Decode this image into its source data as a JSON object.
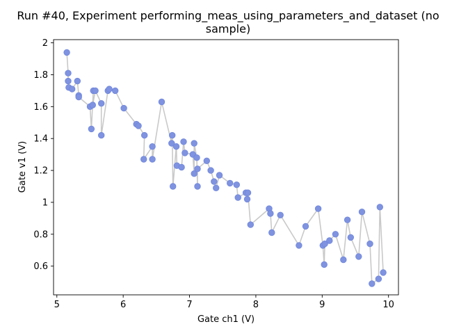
{
  "chart_data": {
    "type": "scatter",
    "title_line1": "Run #40, Experiment performing_meas_using_parameters_and_dataset (no",
    "title_line2": "sample)",
    "xlabel": "Gate ch1 (V)",
    "ylabel": "Gate v1 (V)",
    "xlim": [
      4.95,
      10.15
    ],
    "ylim": [
      0.42,
      2.02
    ],
    "xticks": [
      5,
      6,
      7,
      8,
      9,
      10
    ],
    "xtick_labels": [
      "5",
      "6",
      "7",
      "8",
      "9",
      "10"
    ],
    "yticks": [
      0.6,
      0.8,
      1.0,
      1.2,
      1.4,
      1.6,
      1.8,
      2.0
    ],
    "ytick_labels": [
      "0.6",
      "0.8",
      "1",
      "1.2",
      "1.4",
      "1.6",
      "1.8",
      "2"
    ],
    "grid": false,
    "legend": "none",
    "marker_color": "#7f93e0",
    "marker_edge_color": "#6f86dc",
    "line_color": "#c9c9c9",
    "x": [
      5.15,
      5.17,
      5.17,
      5.18,
      5.23,
      5.31,
      5.33,
      5.33,
      5.5,
      5.52,
      5.55,
      5.54,
      5.58,
      5.67,
      5.67,
      5.77,
      5.79,
      5.88,
      6.01,
      6.2,
      6.23,
      6.32,
      6.31,
      6.44,
      6.44,
      6.58,
      6.73,
      6.74,
      6.75,
      6.8,
      6.81,
      6.88,
      6.91,
      6.93,
      7.05,
      7.07,
      7.07,
      7.11,
      7.12,
      7.12,
      7.26,
      7.32,
      7.37,
      7.4,
      7.45,
      7.61,
      7.71,
      7.73,
      7.85,
      7.87,
      7.88,
      7.92,
      8.2,
      8.22,
      8.24,
      8.37,
      8.65,
      8.75,
      8.94,
      9.01,
      9.03,
      9.04,
      9.11,
      9.2,
      9.32,
      9.38,
      9.43,
      9.55,
      9.6,
      9.72,
      9.75,
      9.85,
      9.87,
      9.92
    ],
    "y": [
      1.94,
      1.81,
      1.76,
      1.72,
      1.71,
      1.76,
      1.67,
      1.66,
      1.6,
      1.46,
      1.7,
      1.61,
      1.7,
      1.62,
      1.42,
      1.7,
      1.71,
      1.7,
      1.59,
      1.49,
      1.48,
      1.42,
      1.27,
      1.35,
      1.27,
      1.63,
      1.37,
      1.42,
      1.1,
      1.35,
      1.23,
      1.22,
      1.38,
      1.31,
      1.3,
      1.18,
      1.37,
      1.28,
      1.1,
      1.21,
      1.26,
      1.2,
      1.13,
      1.09,
      1.17,
      1.12,
      1.11,
      1.03,
      1.06,
      1.02,
      1.06,
      0.86,
      0.96,
      0.93,
      0.81,
      0.92,
      0.73,
      0.85,
      0.96,
      0.73,
      0.61,
      0.74,
      0.76,
      0.8,
      0.64,
      0.89,
      0.78,
      0.66,
      0.94,
      0.74,
      0.49,
      0.52,
      0.97,
      0.56
    ]
  }
}
